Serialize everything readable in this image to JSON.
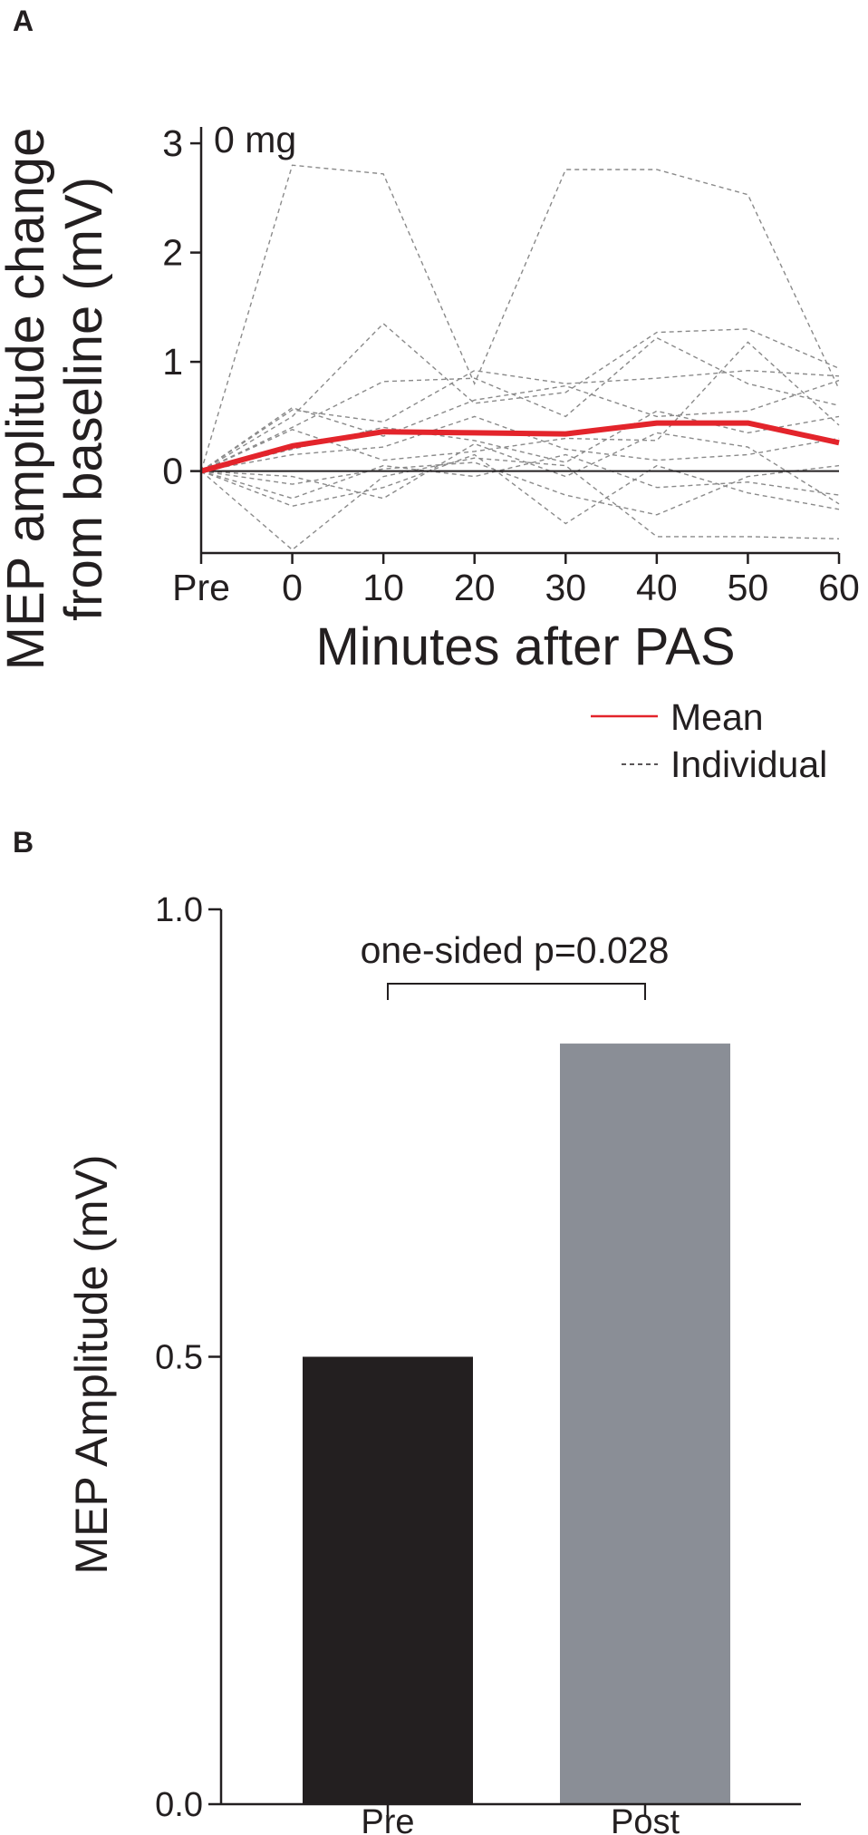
{
  "figure": {
    "panels": [
      "A",
      "B"
    ]
  },
  "chart_data": [
    {
      "type": "line",
      "panel": "A",
      "annotation": "0 mg",
      "xlabel": "Minutes after PAS",
      "ylabel_line1": "MEP amplitude change",
      "ylabel_line2": "from baseline (mV)",
      "categories": [
        "Pre",
        "0",
        "10",
        "20",
        "30",
        "40",
        "50",
        "60"
      ],
      "ylim": [
        -0.75,
        3.15
      ],
      "yticks": [
        0,
        1,
        2,
        3
      ],
      "reference_line": 0,
      "grid": false,
      "legend": {
        "position": "bottom-right",
        "entries": [
          {
            "label": "Mean",
            "style": "solid",
            "color": "#e3242b"
          },
          {
            "label": "Individual",
            "style": "dashed",
            "color": "#231f20"
          }
        ]
      },
      "colors": {
        "mean": "#e3242b",
        "individual": "#8a8a8a",
        "axis": "#231f20"
      },
      "series": [
        {
          "name": "Mean",
          "style": "solid",
          "values": [
            0,
            0.23,
            0.36,
            0.35,
            0.34,
            0.44,
            0.44,
            0.26
          ]
        },
        {
          "style": "dashed",
          "values": [
            0,
            2.8,
            2.72,
            0.8,
            2.76,
            2.76,
            2.53,
            0.75
          ]
        },
        {
          "style": "dashed",
          "values": [
            0,
            0.5,
            1.35,
            0.62,
            0.72,
            1.27,
            1.3,
            0.94
          ]
        },
        {
          "style": "dashed",
          "values": [
            0,
            0.56,
            0.45,
            0.92,
            0.8,
            0.85,
            0.92,
            0.87
          ]
        },
        {
          "style": "dashed",
          "values": [
            0,
            0.4,
            0.82,
            0.85,
            0.5,
            1.22,
            0.8,
            0.6
          ]
        },
        {
          "style": "dashed",
          "values": [
            0,
            0.58,
            0.32,
            0.65,
            0.78,
            0.5,
            0.55,
            0.83
          ]
        },
        {
          "style": "dashed",
          "values": [
            0,
            0.2,
            0.4,
            0.28,
            0.08,
            0.55,
            0.35,
            0.5
          ]
        },
        {
          "style": "dashed",
          "values": [
            0,
            0.38,
            0.1,
            0.18,
            0.3,
            0.28,
            1.18,
            0.42
          ]
        },
        {
          "style": "dashed",
          "values": [
            0,
            0.15,
            0.22,
            0.5,
            0.2,
            0.1,
            0.15,
            0.3
          ]
        },
        {
          "style": "dashed",
          "values": [
            0,
            -0.05,
            -0.25,
            0.25,
            -0.05,
            0.35,
            0.22,
            -0.3
          ]
        },
        {
          "style": "dashed",
          "values": [
            0,
            -0.25,
            0.05,
            -0.05,
            0.15,
            -0.15,
            -0.1,
            -0.22
          ]
        },
        {
          "style": "dashed",
          "values": [
            0,
            -0.32,
            -0.15,
            0.15,
            -0.48,
            0.05,
            -0.2,
            -0.35
          ]
        },
        {
          "style": "dashed",
          "values": [
            0,
            -0.72,
            -0.05,
            0.12,
            0.05,
            -0.6,
            -0.6,
            -0.62
          ]
        },
        {
          "style": "dashed",
          "values": [
            0,
            -0.12,
            0.02,
            0.08,
            -0.22,
            -0.4,
            -0.05,
            0.05
          ]
        }
      ]
    },
    {
      "type": "bar",
      "panel": "B",
      "ylabel": "MEP Amplitude (mV)",
      "categories": [
        "Pre",
        "Post"
      ],
      "values": [
        0.5,
        0.85
      ],
      "colors": [
        "#231f20",
        "#8a8e96"
      ],
      "ylim": [
        0,
        1.0
      ],
      "yticks": [
        "0.0",
        "0.5",
        "1.0"
      ],
      "grid": false,
      "annotation": "one-sided p=0.028"
    }
  ]
}
